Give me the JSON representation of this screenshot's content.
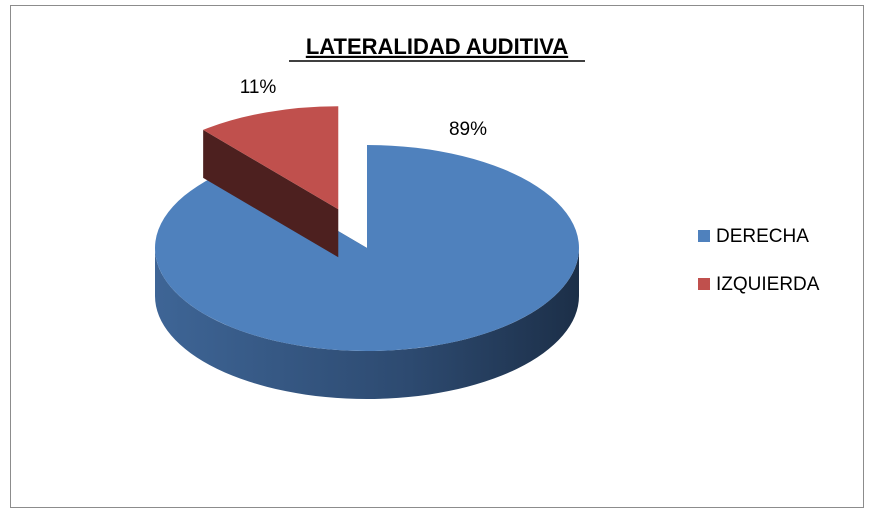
{
  "chart_data": {
    "type": "pie",
    "title": "LATERALIDAD AUDITIVA",
    "categories": [
      "DERECHA",
      "IZQUIERDA"
    ],
    "values": [
      89,
      11
    ],
    "value_labels": [
      "89%",
      "11%"
    ],
    "colors": [
      "#4f81bd",
      "#c0504d"
    ],
    "legend": "right"
  }
}
